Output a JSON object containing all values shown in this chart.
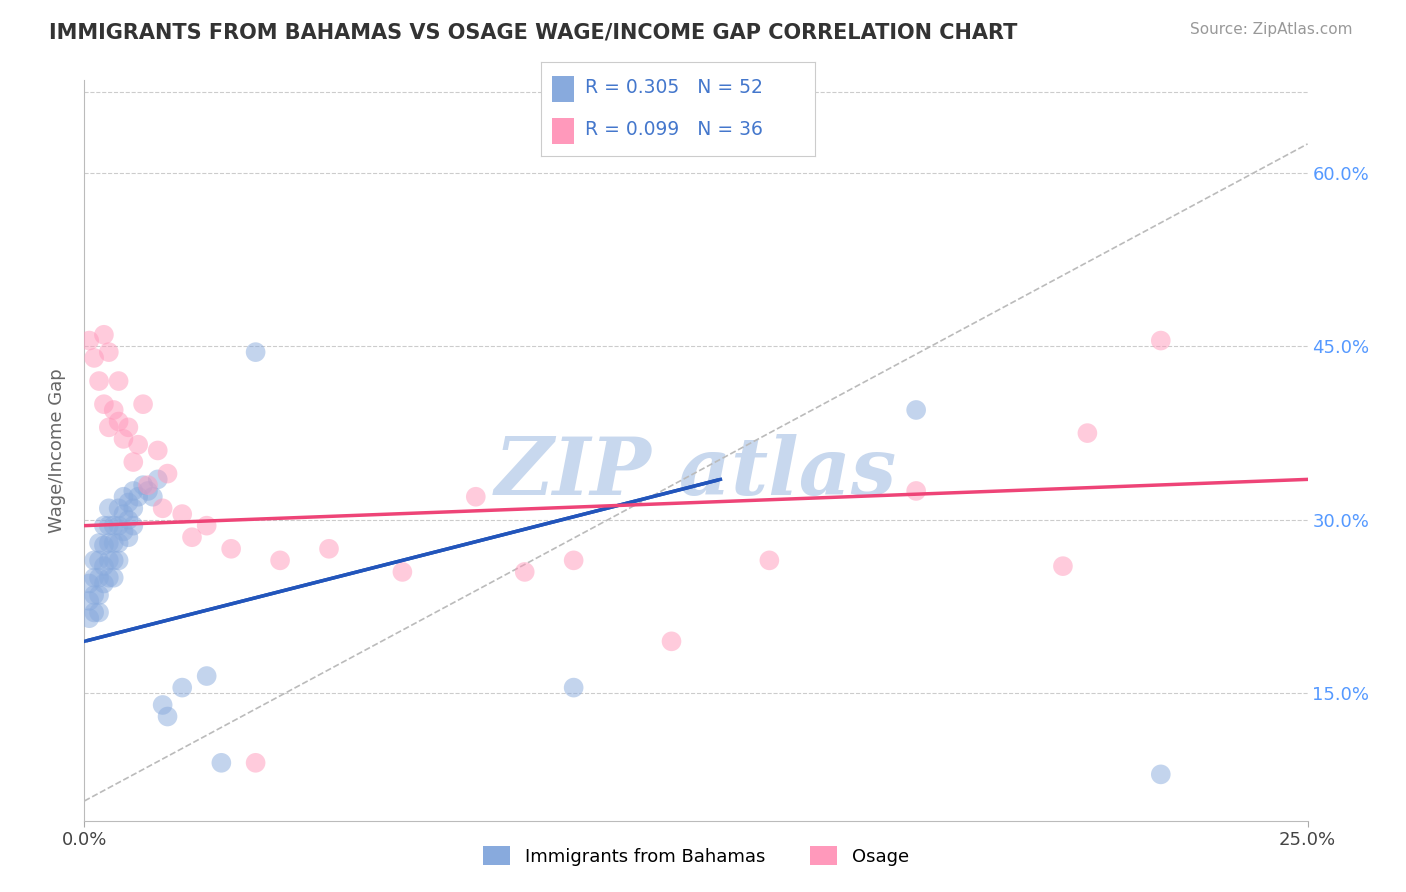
{
  "title": "IMMIGRANTS FROM BAHAMAS VS OSAGE WAGE/INCOME GAP CORRELATION CHART",
  "source_text": "Source: ZipAtlas.com",
  "ylabel": "Wage/Income Gap",
  "ytick_labels": [
    "15.0%",
    "30.0%",
    "45.0%",
    "60.0%"
  ],
  "ytick_values": [
    0.15,
    0.3,
    0.45,
    0.6
  ],
  "xlim": [
    0.0,
    0.25
  ],
  "ylim": [
    0.04,
    0.68
  ],
  "legend_label1": "Immigrants from Bahamas",
  "legend_label2": "Osage",
  "R1": 0.305,
  "N1": 52,
  "R2": 0.099,
  "N2": 36,
  "color_blue": "#88AADD",
  "color_pink": "#FF99BB",
  "color_blue_line": "#2255BB",
  "color_pink_line": "#EE4477",
  "color_dashed": "#BBBBBB",
  "watermark_text": "ZIP atlas",
  "watermark_color": "#C8D8EE",
  "background_color": "#FFFFFF",
  "blue_line_x0": 0.0,
  "blue_line_y0": 0.195,
  "blue_line_x1": 0.13,
  "blue_line_y1": 0.335,
  "pink_line_x0": 0.0,
  "pink_line_y0": 0.295,
  "pink_line_x1": 0.25,
  "pink_line_y1": 0.335,
  "blue_scatter_x": [
    0.001,
    0.001,
    0.001,
    0.002,
    0.002,
    0.002,
    0.002,
    0.003,
    0.003,
    0.003,
    0.003,
    0.003,
    0.004,
    0.004,
    0.004,
    0.004,
    0.005,
    0.005,
    0.005,
    0.005,
    0.005,
    0.006,
    0.006,
    0.006,
    0.006,
    0.007,
    0.007,
    0.007,
    0.007,
    0.008,
    0.008,
    0.008,
    0.009,
    0.009,
    0.009,
    0.01,
    0.01,
    0.01,
    0.011,
    0.012,
    0.013,
    0.014,
    0.015,
    0.016,
    0.017,
    0.02,
    0.025,
    0.028,
    0.035,
    0.1,
    0.17,
    0.22
  ],
  "blue_scatter_y": [
    0.245,
    0.23,
    0.215,
    0.265,
    0.25,
    0.235,
    0.22,
    0.28,
    0.265,
    0.25,
    0.235,
    0.22,
    0.295,
    0.278,
    0.26,
    0.245,
    0.31,
    0.295,
    0.28,
    0.265,
    0.25,
    0.295,
    0.28,
    0.265,
    0.25,
    0.31,
    0.295,
    0.28,
    0.265,
    0.32,
    0.305,
    0.29,
    0.315,
    0.3,
    0.285,
    0.325,
    0.31,
    0.295,
    0.32,
    0.33,
    0.325,
    0.32,
    0.335,
    0.14,
    0.13,
    0.155,
    0.165,
    0.09,
    0.445,
    0.155,
    0.395,
    0.08
  ],
  "pink_scatter_x": [
    0.001,
    0.002,
    0.003,
    0.004,
    0.004,
    0.005,
    0.005,
    0.006,
    0.007,
    0.007,
    0.008,
    0.009,
    0.01,
    0.011,
    0.012,
    0.013,
    0.015,
    0.016,
    0.017,
    0.02,
    0.022,
    0.025,
    0.03,
    0.035,
    0.04,
    0.05,
    0.065,
    0.08,
    0.09,
    0.1,
    0.12,
    0.14,
    0.17,
    0.2,
    0.205,
    0.22
  ],
  "pink_scatter_y": [
    0.455,
    0.44,
    0.42,
    0.4,
    0.46,
    0.38,
    0.445,
    0.395,
    0.42,
    0.385,
    0.37,
    0.38,
    0.35,
    0.365,
    0.4,
    0.33,
    0.36,
    0.31,
    0.34,
    0.305,
    0.285,
    0.295,
    0.275,
    0.09,
    0.265,
    0.275,
    0.255,
    0.32,
    0.255,
    0.265,
    0.195,
    0.265,
    0.325,
    0.26,
    0.375,
    0.455
  ]
}
